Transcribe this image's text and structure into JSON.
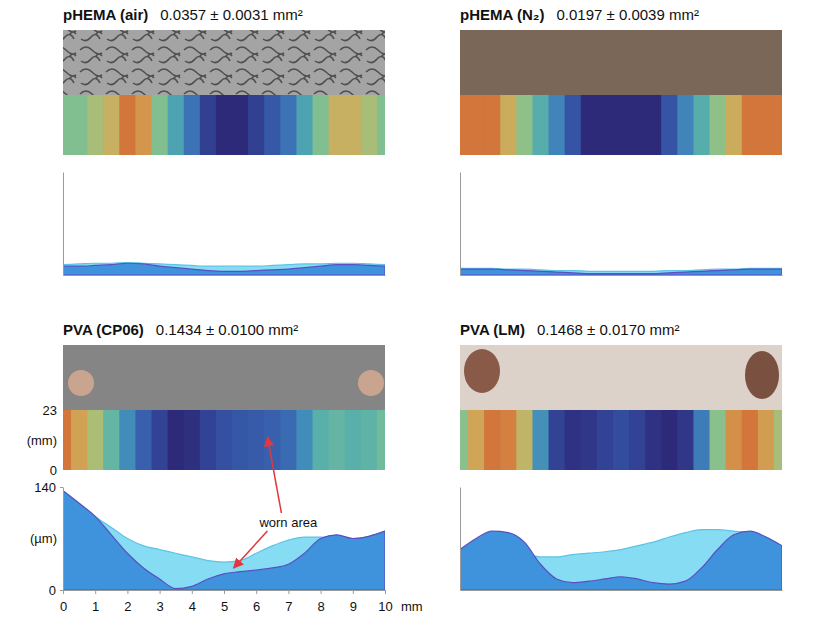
{
  "chart_data": [
    {
      "type": "area",
      "title": "pHEMA (air)",
      "subtitle": "0.0357 ± 0.0031 mm²",
      "x": [
        0,
        0.5,
        1,
        1.5,
        2,
        2.5,
        3,
        3.5,
        4,
        4.5,
        5,
        5.5,
        6,
        6.5,
        7,
        7.5,
        8,
        8.5,
        9,
        9.5,
        10
      ],
      "series": [
        {
          "color": "#86dcf3",
          "values": [
            14,
            15,
            16,
            16,
            17,
            16,
            15,
            14,
            13,
            12,
            12,
            12,
            12,
            13,
            14,
            15,
            15,
            16,
            16,
            15,
            14
          ]
        },
        {
          "color": "#3f93dc",
          "values": [
            12,
            12,
            13,
            14,
            16,
            15,
            12,
            10,
            8,
            6,
            5,
            5,
            6,
            7,
            8,
            10,
            12,
            14,
            14,
            13,
            12
          ]
        }
      ],
      "xlim": [
        0,
        10
      ],
      "ylim": [
        0,
        140
      ],
      "tick_labels": false
    },
    {
      "type": "area",
      "title": "pHEMA (N₂)",
      "subtitle": "0.0197 ± 0.0039 mm²",
      "x": [
        0,
        0.5,
        1,
        1.5,
        2,
        2.5,
        3,
        3.5,
        4,
        4.5,
        5,
        5.5,
        6,
        6.5,
        7,
        7.5,
        8,
        8.5,
        9,
        9.5,
        10
      ],
      "series": [
        {
          "color": "#86dcf3",
          "values": [
            9,
            9,
            9,
            8,
            8,
            7,
            6,
            6,
            5,
            5,
            5,
            5,
            5,
            6,
            6,
            7,
            8,
            8,
            9,
            9,
            9
          ]
        },
        {
          "color": "#3f93dc",
          "values": [
            8,
            8,
            8,
            7,
            6,
            5,
            4,
            3,
            2,
            2,
            2,
            2,
            2,
            3,
            4,
            5,
            6,
            7,
            8,
            8,
            8
          ]
        }
      ],
      "xlim": [
        0,
        10
      ],
      "ylim": [
        0,
        140
      ],
      "tick_labels": false
    },
    {
      "type": "area",
      "title": "PVA (CP06)",
      "subtitle": "0.1434 ± 0.0100 mm²",
      "x": [
        0,
        0.5,
        1,
        1.5,
        2,
        2.5,
        3,
        3.5,
        4,
        4.5,
        5,
        5.5,
        6,
        6.5,
        7,
        7.5,
        8,
        8.5,
        9,
        9.5,
        10
      ],
      "series": [
        {
          "color": "#86dcf3",
          "values": [
            135,
            118,
            100,
            85,
            70,
            60,
            55,
            50,
            45,
            40,
            38,
            40,
            50,
            60,
            68,
            72,
            72,
            72,
            70,
            73,
            80
          ]
        },
        {
          "color": "#3f93dc",
          "values": [
            135,
            118,
            100,
            75,
            50,
            30,
            15,
            2,
            5,
            15,
            22,
            25,
            27,
            30,
            35,
            50,
            70,
            75,
            70,
            73,
            80
          ]
        }
      ],
      "xlim": [
        0,
        10
      ],
      "ylim": [
        0,
        140
      ],
      "xticks": [
        0,
        1,
        2,
        3,
        4,
        5,
        6,
        7,
        8,
        9,
        10
      ],
      "yticks": [
        0,
        140
      ],
      "xlabel": "mm",
      "ylabel": "(µm)",
      "map": {
        "ylim": [
          0,
          23
        ],
        "yticks": [
          0,
          23
        ],
        "ylabel": "(mm)"
      },
      "annotations": [
        {
          "text": "worn area"
        }
      ]
    },
    {
      "type": "area",
      "title": "PVA (LM)",
      "subtitle": "0.1468 ± 0.0170 mm²",
      "x": [
        0,
        0.5,
        1,
        1.5,
        2,
        2.5,
        3,
        3.5,
        4,
        4.5,
        5,
        5.5,
        6,
        6.5,
        7,
        7.5,
        8,
        8.5,
        9,
        9.5,
        10
      ],
      "series": [
        {
          "color": "#86dcf3",
          "values": [
            55,
            65,
            72,
            65,
            50,
            45,
            45,
            48,
            50,
            52,
            55,
            60,
            65,
            72,
            78,
            82,
            82,
            80,
            78,
            72,
            60
          ]
        },
        {
          "color": "#3f93dc",
          "values": [
            55,
            70,
            80,
            78,
            65,
            35,
            15,
            10,
            12,
            15,
            18,
            15,
            10,
            8,
            12,
            30,
            55,
            75,
            80,
            72,
            60
          ]
        }
      ],
      "xlim": [
        0,
        10
      ],
      "ylim": [
        0,
        140
      ],
      "tick_labels": false
    }
  ]
}
